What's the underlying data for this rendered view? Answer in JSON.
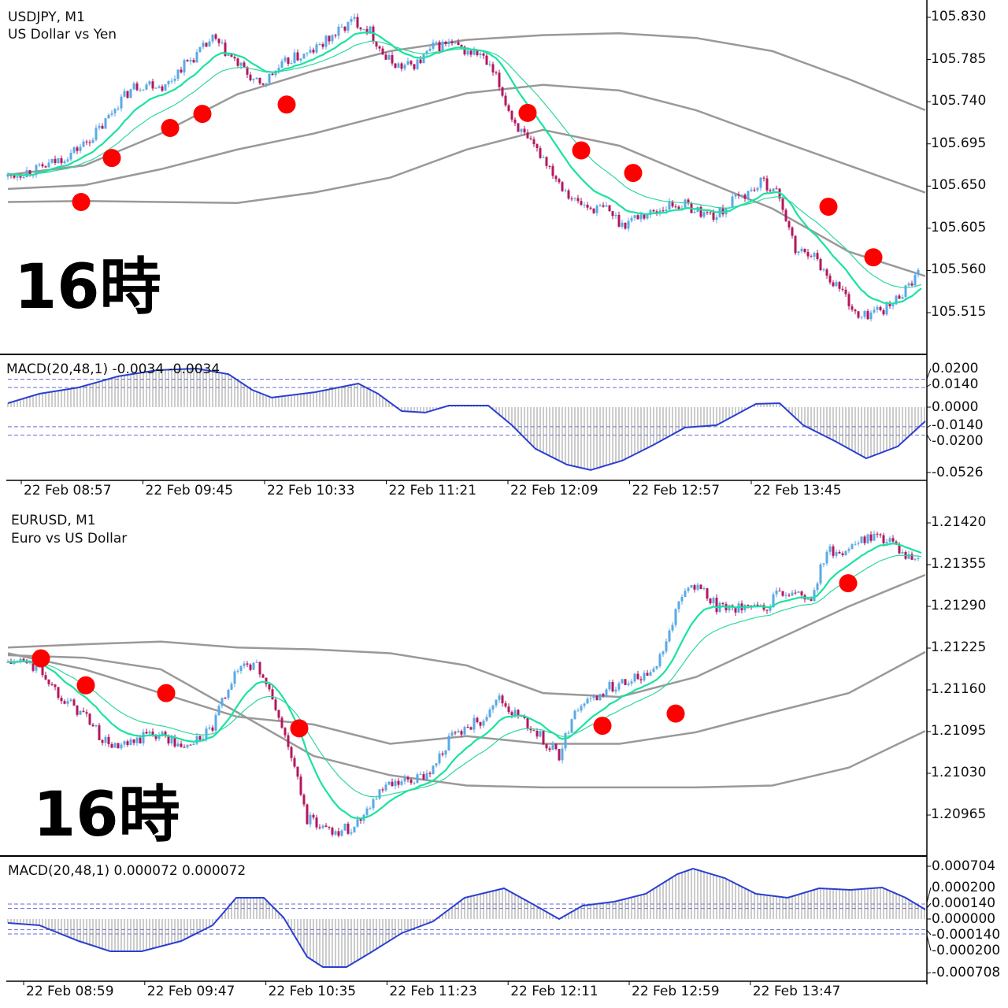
{
  "colors": {
    "up": "#5aa9e6",
    "down": "#b3175e",
    "ma_fast": "#19e3a0",
    "ma_slow": "#2ed8a0",
    "band": "#999999",
    "macd_line": "#2a3fd0",
    "macd_hist": "#9a9a9a",
    "level": "#6a6ad8",
    "dot": "#ff0000"
  },
  "overlay_text": [
    "16時",
    "16時"
  ],
  "chart_data": [
    {
      "type": "candlestick",
      "symbol": "USDJPY, M1",
      "description": "US Dollar vs Yen",
      "ylim": [
        105.47,
        105.845
      ],
      "y_ticks": [
        "105.830",
        "105.785",
        "105.740",
        "105.695",
        "105.650",
        "105.605",
        "105.560",
        "105.515"
      ],
      "y_tick_values": [
        105.83,
        105.785,
        105.74,
        105.695,
        105.65,
        105.605,
        105.56,
        105.515
      ],
      "x_ticks": [
        "22 Feb 08:57",
        "22 Feb 09:45",
        "22 Feb 10:33",
        "22 Feb 11:21",
        "22 Feb 12:09",
        "22 Feb 12:57",
        "22 Feb 13:45"
      ],
      "closes": [
        105.66,
        105.665,
        105.668,
        105.676,
        105.685,
        105.697,
        105.714,
        105.739,
        105.756,
        105.76,
        105.756,
        105.777,
        105.79,
        105.807,
        105.79,
        105.773,
        105.756,
        105.773,
        105.786,
        105.79,
        105.802,
        105.815,
        105.827,
        105.815,
        105.786,
        105.777,
        105.781,
        105.798,
        105.802,
        105.794,
        105.79,
        105.765,
        105.723,
        105.697,
        105.681,
        105.655,
        105.634,
        105.626,
        105.626,
        105.609,
        105.618,
        105.622,
        105.63,
        105.63,
        105.622,
        105.618,
        105.634,
        105.643,
        105.655,
        105.639,
        105.58,
        105.58,
        105.555,
        105.538,
        105.508,
        105.517,
        105.521,
        105.542,
        105.559
      ],
      "bands": [
        [
          105.662,
          105.672,
          105.706,
          105.748,
          105.773,
          105.794,
          105.806,
          105.811,
          105.813,
          105.808,
          105.794,
          105.764,
          105.731
        ],
        [
          105.647,
          105.651,
          105.668,
          105.689,
          105.706,
          105.727,
          105.749,
          105.758,
          105.752,
          105.731,
          105.701,
          105.672,
          105.643
        ],
        [
          105.633,
          105.634,
          105.633,
          105.632,
          105.643,
          105.659,
          105.689,
          105.71,
          105.693,
          105.659,
          105.626,
          105.58,
          105.554
        ]
      ],
      "dots": [
        [
          4.65,
          105.633
        ],
        [
          6.6,
          105.68
        ],
        [
          10.3,
          105.712
        ],
        [
          12.35,
          105.727
        ],
        [
          17.7,
          105.737
        ],
        [
          33,
          105.728
        ],
        [
          36.4,
          105.688
        ],
        [
          39.7,
          105.664
        ],
        [
          52.1,
          105.628
        ],
        [
          54.95,
          105.574
        ]
      ],
      "macd": {
        "title": "MACD(20,48,1) -0.0034 -0.0034",
        "ylim": [
          -0.0526,
          0.0526
        ],
        "y_ticks": [
          "0.0200",
          "0.0140",
          "0.0000",
          "-0.0140",
          "-0.0200",
          "-0.0526"
        ],
        "y_tick_values": [
          0.02,
          0.014,
          0.0,
          -0.014,
          -0.02,
          -0.0526
        ],
        "levels": [
          0.02,
          0.014,
          -0.014,
          -0.02
        ],
        "points": [
          [
            0,
            0.0028
          ],
          [
            2,
            0.0096
          ],
          [
            4.5,
            0.0141
          ],
          [
            7,
            0.022
          ],
          [
            9.5,
            0.0265
          ],
          [
            12,
            0.0276
          ],
          [
            14,
            0.0236
          ],
          [
            15.5,
            0.0124
          ],
          [
            16.75,
            0.0068
          ],
          [
            19.5,
            0.0107
          ],
          [
            22.25,
            0.0169
          ],
          [
            23.5,
            0.0096
          ],
          [
            25,
            -0.0028
          ],
          [
            26.5,
            -0.0039
          ],
          [
            28,
            0.0011
          ],
          [
            30.5,
            0.0011
          ],
          [
            32,
            -0.0129
          ],
          [
            33.5,
            -0.0298
          ],
          [
            35.5,
            -0.0411
          ],
          [
            37,
            -0.045
          ],
          [
            39,
            -0.0383
          ],
          [
            41,
            -0.027
          ],
          [
            43,
            -0.0146
          ],
          [
            45,
            -0.0129
          ],
          [
            47.5,
            0.0023
          ],
          [
            49,
            0.0028
          ],
          [
            50.5,
            -0.0129
          ],
          [
            52.5,
            -0.0242
          ],
          [
            54.5,
            -0.0366
          ],
          [
            56.5,
            -0.0281
          ],
          [
            58.25,
            -0.0101
          ]
        ]
      }
    },
    {
      "type": "candlestick",
      "symbol": "EURUSD, M1",
      "description": "Euro vs US Dollar",
      "ylim": [
        1.2091,
        1.2144
      ],
      "y_ticks": [
        "1.21420",
        "1.21355",
        "1.21290",
        "1.21225",
        "1.21160",
        "1.21095",
        "1.21030",
        "1.20965"
      ],
      "y_tick_values": [
        1.2142,
        1.21355,
        1.2129,
        1.21225,
        1.2116,
        1.21095,
        1.2103,
        1.20965
      ],
      "x_ticks": [
        "22 Feb 08:59",
        "22 Feb 09:47",
        "22 Feb 10:35",
        "22 Feb 11:23",
        "22 Feb 12:11",
        "22 Feb 12:59",
        "22 Feb 13:47"
      ],
      "closes": [
        1.21202,
        1.21204,
        1.21192,
        1.21161,
        1.21137,
        1.21118,
        1.21082,
        1.21069,
        1.21076,
        1.21094,
        1.21088,
        1.21069,
        1.21082,
        1.211,
        1.21167,
        1.21204,
        1.21192,
        1.21131,
        1.21057,
        1.20959,
        1.20947,
        1.20941,
        1.20947,
        1.20984,
        1.21008,
        1.21014,
        1.2102,
        1.21039,
        1.21082,
        1.211,
        1.21112,
        1.21149,
        1.21125,
        1.21106,
        1.21082,
        1.21057,
        1.21131,
        1.21143,
        1.21161,
        1.21174,
        1.2118,
        1.21192,
        1.21253,
        1.21321,
        1.21315,
        1.2129,
        1.2129,
        1.21284,
        1.21284,
        1.21315,
        1.21308,
        1.21302,
        1.21376,
        1.21376,
        1.21388,
        1.214,
        1.21394,
        1.21364,
        1.21357
      ],
      "bands": [
        [
          1.21226,
          1.21231,
          1.21235,
          1.21226,
          1.21223,
          1.21217,
          1.21198,
          1.21155,
          1.21149,
          1.2118,
          1.21235,
          1.2129,
          1.21339
        ],
        [
          1.21217,
          1.21192,
          1.21155,
          1.21118,
          1.21106,
          1.21076,
          1.21088,
          1.21076,
          1.21076,
          1.21094,
          1.21125,
          1.21155,
          1.21219
        ],
        [
          1.21214,
          1.2121,
          1.21192,
          1.21125,
          1.21057,
          1.21027,
          1.21011,
          1.21008,
          1.21008,
          1.21008,
          1.21011,
          1.21039,
          1.21096
        ]
      ],
      "dots": [
        [
          2.1,
          1.21209
        ],
        [
          4.95,
          1.21167
        ],
        [
          10.05,
          1.21155
        ],
        [
          18.5,
          1.211
        ],
        [
          37.75,
          1.21104
        ],
        [
          42.4,
          1.21123
        ],
        [
          53.35,
          1.21326
        ]
      ],
      "macd": {
        "title": "MACD(20,48,1) 0.000072 0.000072",
        "ylim": [
          -0.000708,
          0.000704
        ],
        "y_ticks": [
          "0.000704",
          "0.000200",
          "0.000140",
          "0.000000",
          "-0.000140",
          "-0.000200",
          "-0.000708"
        ],
        "y_tick_values": [
          0.000704,
          0.0002,
          0.00014,
          0.0,
          -0.00014,
          -0.0002,
          -0.000708
        ],
        "levels": [
          0.0002,
          0.00014,
          -0.00014,
          -0.0002
        ],
        "points": [
          [
            0,
            -5.3e-05
          ],
          [
            2,
            -8.4e-05
          ],
          [
            4.5,
            -0.000294
          ],
          [
            6.5,
            -0.000431
          ],
          [
            8.5,
            -0.000431
          ],
          [
            11,
            -0.000294
          ],
          [
            13,
            -8.4e-05
          ],
          [
            14.5,
            0.000284
          ],
          [
            16.25,
            0.000284
          ],
          [
            17.5,
            2.1e-05
          ],
          [
            19,
            -0.000504
          ],
          [
            20,
            -0.000641
          ],
          [
            21.5,
            -0.000641
          ],
          [
            23,
            -0.000452
          ],
          [
            25,
            -0.000189
          ],
          [
            27,
            -3.2e-05
          ],
          [
            29,
            0.000284
          ],
          [
            31.5,
            0.00041
          ],
          [
            33.5,
            0.000179
          ],
          [
            35,
            0.0
          ],
          [
            36.5,
            0.000179
          ],
          [
            38.5,
            0.000231
          ],
          [
            40.5,
            0.000336
          ],
          [
            42.5,
            0.000599
          ],
          [
            43.5,
            0.000673
          ],
          [
            45.5,
            0.000547
          ],
          [
            47.5,
            0.000336
          ],
          [
            49.5,
            0.000284
          ],
          [
            51.5,
            0.00041
          ],
          [
            53.5,
            0.000389
          ],
          [
            55.5,
            0.00042
          ],
          [
            57,
            0.000284
          ],
          [
            58.25,
            0.000126
          ]
        ]
      }
    }
  ]
}
